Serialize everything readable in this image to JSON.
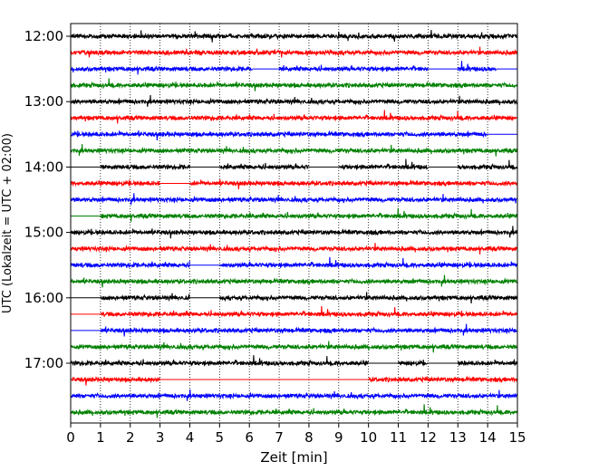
{
  "chart_data": {
    "type": "line",
    "title": "",
    "xlabel": "Zeit  [min]",
    "ylabel": "UTC (Lokalzeit = UTC + 02:00)",
    "xlim": [
      0,
      15
    ],
    "x_ticks": [
      "0",
      "1",
      "2",
      "3",
      "4",
      "5",
      "6",
      "7",
      "8",
      "9",
      "10",
      "11",
      "12",
      "13",
      "14",
      "15"
    ],
    "y_ticks": [
      "12:00",
      "13:00",
      "14:00",
      "15:00",
      "16:00",
      "17:00"
    ],
    "vertical_grid": "dotted",
    "rows_per_hour": 4,
    "row_interval_min": 15,
    "colors_cycle": [
      "#000000",
      "#ff0000",
      "#0000ff",
      "#008000"
    ],
    "series": [
      {
        "start": "12:00",
        "color": "black",
        "gaps": []
      },
      {
        "start": "12:15",
        "color": "red",
        "gaps": []
      },
      {
        "start": "12:30",
        "color": "blue",
        "gaps": [
          [
            6.1,
            7.0
          ],
          [
            12.0,
            13.0
          ],
          [
            14.3,
            15.0
          ]
        ]
      },
      {
        "start": "12:45",
        "color": "green",
        "gaps": []
      },
      {
        "start": "13:00",
        "color": "black",
        "gaps": []
      },
      {
        "start": "13:15",
        "color": "red",
        "gaps": []
      },
      {
        "start": "13:30",
        "color": "blue",
        "gaps": [
          [
            14.0,
            15.0
          ]
        ]
      },
      {
        "start": "13:45",
        "color": "green",
        "gaps": []
      },
      {
        "start": "14:00",
        "color": "black",
        "gaps": [
          [
            0.0,
            1.0
          ],
          [
            4.0,
            5.0
          ],
          [
            8.0,
            9.0
          ],
          [
            12.0,
            13.0
          ]
        ]
      },
      {
        "start": "14:15",
        "color": "red",
        "gaps": [
          [
            3.0,
            4.0
          ]
        ]
      },
      {
        "start": "14:30",
        "color": "blue",
        "gaps": []
      },
      {
        "start": "14:45",
        "color": "green",
        "gaps": [
          [
            0.0,
            1.0
          ]
        ]
      },
      {
        "start": "15:00",
        "color": "black",
        "gaps": []
      },
      {
        "start": "15:15",
        "color": "red",
        "gaps": []
      },
      {
        "start": "15:30",
        "color": "blue",
        "gaps": [
          [
            4.0,
            5.0
          ]
        ]
      },
      {
        "start": "15:45",
        "color": "green",
        "gaps": []
      },
      {
        "start": "16:00",
        "color": "black",
        "gaps": [
          [
            0.0,
            1.0
          ],
          [
            4.0,
            5.0
          ]
        ]
      },
      {
        "start": "16:15",
        "color": "red",
        "gaps": [
          [
            0.0,
            1.0
          ]
        ]
      },
      {
        "start": "16:30",
        "color": "blue",
        "gaps": [
          [
            0.0,
            1.0
          ]
        ]
      },
      {
        "start": "16:45",
        "color": "green",
        "gaps": []
      },
      {
        "start": "17:00",
        "color": "black",
        "gaps": [
          [
            10.0,
            11.0
          ],
          [
            12.0,
            13.0
          ]
        ]
      },
      {
        "start": "17:15",
        "color": "red",
        "gaps": [
          [
            3.0,
            10.0
          ]
        ]
      },
      {
        "start": "17:30",
        "color": "blue",
        "gaps": []
      },
      {
        "start": "17:45",
        "color": "green",
        "gaps": []
      }
    ]
  }
}
